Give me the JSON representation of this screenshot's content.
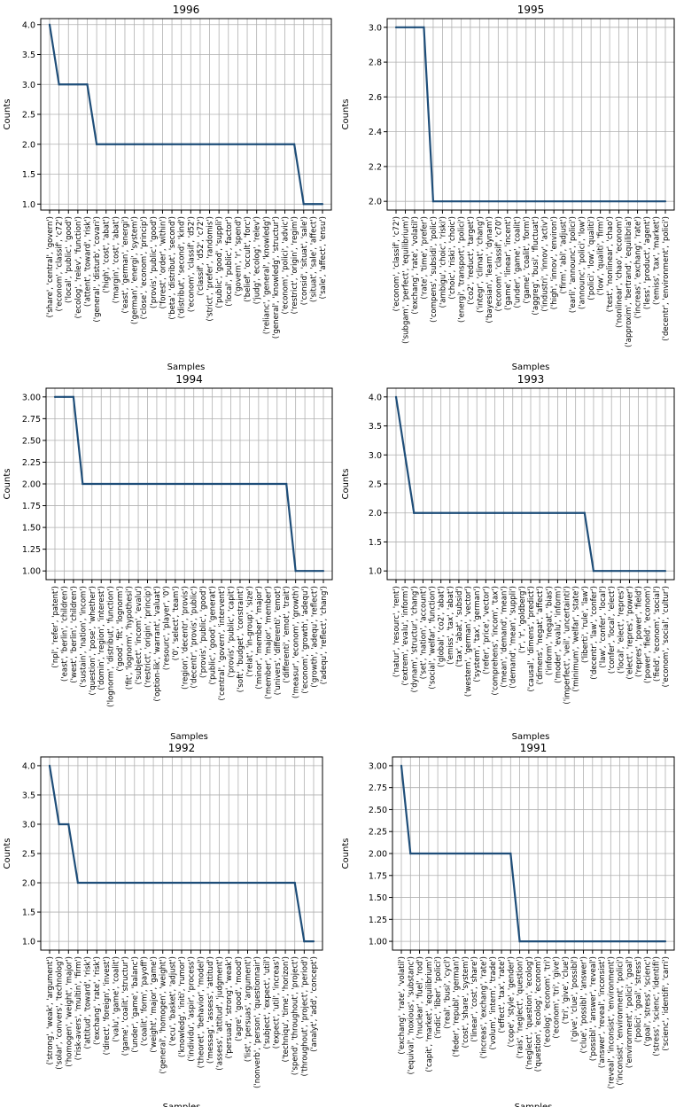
{
  "chart_data": [
    {
      "type": "line",
      "title": "1996",
      "xlabel": "Samples",
      "ylabel": "Counts",
      "ylim": [
        0.9,
        4.1
      ],
      "yticks": [
        1.0,
        1.5,
        2.0,
        2.5,
        3.0,
        3.5,
        4.0
      ],
      "ytick_format": "1",
      "grid": true,
      "color": "#1f4e79",
      "x": [
        "('share', 'central', 'govern')",
        "('econom', 'classif', 'c72')",
        "('local', 'public', 'good')",
        "('ecolog', 'relev', 'function')",
        "('attent', 'toward', 'risk')",
        "('general', 'disturb', 'covari')",
        "('high', 'cost', 'abat')",
        "('margin', 'cost', 'abat')",
        "('east', 'german', 'energi')",
        "('german', 'energi', 'system')",
        "('close', 'econom', 'princip')",
        "('provis', 'public', 'good')",
        "('forest', 'order', 'within')",
        "('beta', 'distribut', 'second')",
        "('distribut', 'second', 'kind')",
        "('econom', 'classif', 'd52')",
        "('classif', 'd52', 'c72')",
        "('strict', 'prefer', 'randomis')",
        "('public', 'good', 'suppli')",
        "('local', 'public', 'factor')",
        "('govern', 'r', 'spend')",
        "('belief', 'occult', 'forc')",
        "('judg', 'ecolog', 'relev')",
        "('relianc', 'general', 'knowledg')",
        "('general', 'knowledg', 'structur')",
        "('econom', 'polici', 'advic')",
        "('restrict', 'origin', 'regim')",
        "('consid', 'situat', 'sale')",
        "('situat', 'sale', 'affect')",
        "('sale', 'affect', 'ensu')"
      ],
      "values": [
        4,
        3,
        3,
        3,
        3,
        2,
        2,
        2,
        2,
        2,
        2,
        2,
        2,
        2,
        2,
        2,
        2,
        2,
        2,
        2,
        2,
        2,
        2,
        2,
        2,
        2,
        2,
        1,
        1,
        1
      ]
    },
    {
      "type": "line",
      "title": "1995",
      "xlabel": "Samples",
      "ylabel": "Counts",
      "ylim": [
        1.95,
        3.05
      ],
      "yticks": [
        2.0,
        2.2,
        2.4,
        2.6,
        2.8,
        3.0
      ],
      "ytick_format": "1",
      "grid": true,
      "color": "#1f4e79",
      "x": [
        "('econom', 'classif', 'c72')",
        "('subgam', 'perfect', 'equilibrium')",
        "('exchang', 'rate', 'volatil')",
        "('rate', 'time', 'prefer')",
        "('compens', 'subsidi', 'polic')",
        "('ambigu', 'choic', 'riski')",
        "('choic', 'riski', 'choic')",
        "('energi', 'transport', 'polici')",
        "('co2', 'reduct', 'target')",
        "('integr', 'climat', 'chang')",
        "('bayesian', 'learn', 'dynam')",
        "('econom', 'classif', 'c70')",
        "('game', 'linear', 'incent')",
        "('under', 'game', 'coalit')",
        "('game', 'coalit', 'form')",
        "('aggreg', 'busi', 'fluctuat')",
        "('industri', 'innov', 'activ')",
        "('high', 'innov', 'environ')",
        "('firm', 'abl', 'adjust')",
        "('earli', 'announc', 'polici')",
        "('announc', 'polici', 'low')",
        "('polici', 'low', 'qualiti')",
        "('low', 'qualiti', 'firm')",
        "('test', 'nonlinear', 'chao')",
        "('nonlinear', 'chao', 'econom')",
        "('approxim', 'bertrand', 'equilibria')",
        "('increas', 'exchang', 'rate')",
        "('less', 'product', 'agent')",
        "('emiss', 'tax', 'market')",
        "('decentr', 'environment', 'polici')"
      ],
      "values": [
        3,
        3,
        3,
        3,
        2,
        2,
        2,
        2,
        2,
        2,
        2,
        2,
        2,
        2,
        2,
        2,
        2,
        2,
        2,
        2,
        2,
        2,
        2,
        2,
        2,
        2,
        2,
        2,
        2,
        2
      ]
    },
    {
      "type": "line",
      "title": "1994",
      "xlabel": "Samples",
      "ylabel": "Counts",
      "ylim": [
        0.9,
        3.1
      ],
      "yticks": [
        1.0,
        1.25,
        1.5,
        1.75,
        2.0,
        2.25,
        2.5,
        2.75,
        3.0
      ],
      "ytick_format": "2",
      "grid": true,
      "color": "#1f4e79",
      "x": [
        "('npl', 'refer', 'patent')",
        "('east', 'berlin', 'children')",
        "('west', 'berlin', 'children')",
        "('sustain', 'nation', 'incom')",
        "('question', 'pose', 'whether')",
        "('domin', 'region', 'interest')",
        "('lognorm', 'distribut', 'function')",
        "('good', 'fit', 'lognorm')",
        "('fit', 'lognorm', 'hypothesi')",
        "('subject', 'incom', 'evalu')",
        "('restrict', 'origin', 'princip')",
        "('option-lik', 'warrant', 'valuat')",
        "('resourc', 'player', '0')",
        "('0', 'select', 'team')",
        "('region', 'decentr', 'provis')",
        "('decentr', 'provis', 'public')",
        "('provis', 'public', 'good')",
        "('public', 'good', 'generat')",
        "('central', 'govern', 'intervent')",
        "('provis', 'public', 'capit')",
        "('soft', 'budget', 'constraint')",
        "('relat', 'in-group', 'size')",
        "('minor', 'member', 'major')",
        "('member', 'major', 'member')",
        "('univers', 'differenti', 'emot')",
        "('differenti', 'emot', 'trait')",
        "('measur', 'econom', 'growth')",
        "('econom', 'growth', 'adequ')",
        "('growth', 'adequ', 'reflect')",
        "('adequ', 'reflect', 'chang')"
      ],
      "values": [
        3,
        3,
        3,
        2,
        2,
        2,
        2,
        2,
        2,
        2,
        2,
        2,
        2,
        2,
        2,
        2,
        2,
        2,
        2,
        2,
        2,
        2,
        2,
        2,
        2,
        2,
        1,
        1,
        1,
        1
      ]
    },
    {
      "type": "line",
      "title": "1993",
      "xlabel": "Samples",
      "ylabel": "Counts",
      "ylim": [
        0.85,
        4.15
      ],
      "yticks": [
        1.0,
        1.5,
        2.0,
        2.5,
        3.0,
        3.5,
        4.0
      ],
      "ytick_format": "1",
      "grid": true,
      "color": "#1f4e79",
      "x": [
        "('natur', 'resourc', 'rent')",
        "('extrem', 'evalu', 'inform')",
        "('dynam', 'structur', 'chang')",
        "('set', 'nation', 'account')",
        "('social', 'welfar', 'function')",
        "('global', 'co2', 'abat')",
        "('emiss', 'tax', 'abat')",
        "('tax', 'abat', 'subsid')",
        "('western', 'german', 'vector')",
        "('system', 'tax', 'german')",
        "('refer', 'price', 'vector')",
        "('comprehens', 'incom', 'tax')",
        "('mean', 'demand', 'mean')",
        "('demand', 'mean', 'suppli')",
        "('r', 'r', 'goldberg')",
        "('causal', 'dimens', 'predict')",
        "('dimens', 'negat', 'affect')",
        "('inform', 'negat', 'bias')",
        "('moder', 'evalu', 'inform')",
        "('imperfect', 'veil', 'uncertainti')",
        "('minimum', 'welfar', 'state')",
        "('liberti', 'rule', 'law')",
        "('decentr', 'law', 'confer')",
        "('law', 'confer', 'local')",
        "('confer', 'local', 'elect')",
        "('local', 'elect', 'repres')",
        "('elect', 'repres', 'power')",
        "('repres', 'power', 'field')",
        "('power', 'field', 'econom')",
        "('field', 'econom', 'social')",
        "('econom', 'social', 'cultur')"
      ],
      "values": [
        4,
        3,
        2,
        2,
        2,
        2,
        2,
        2,
        2,
        2,
        2,
        2,
        2,
        2,
        2,
        2,
        2,
        2,
        2,
        2,
        2,
        2,
        1,
        1,
        1,
        1,
        1,
        1,
        1,
        1,
        1
      ]
    },
    {
      "type": "line",
      "title": "1992",
      "xlabel": "Samples",
      "ylabel": "Counts",
      "ylim": [
        0.85,
        4.15
      ],
      "yticks": [
        1.0,
        1.5,
        2.0,
        2.5,
        3.0,
        3.5,
        4.0
      ],
      "ytick_format": "1",
      "grid": true,
      "color": "#1f4e79",
      "x": [
        "('strong', 'weak', 'argument')",
        "('solar', 'convers', 'technolog')",
        "('homogen', 'weight', 'major')",
        "('risk-avers', 'multin', 'firm')",
        "('attitud', 'toward', 'risk')",
        "('exchang', 'rate', 'risk')",
        "('direct', 'foreign', 'invest')",
        "('valu', 'game', 'coalit')",
        "('game', 'coalit', 'structur')",
        "('under', 'game', 'balanc')",
        "('coalit', 'form', 'payoff')",
        "('weight', 'major', 'game')",
        "('general', 'homogen', 'weight')",
        "('ecu', 'basket', 'adjust')",
        "('knowledg', 'initi', 'rumor')",
        "('individu', 'aspir', 'process')",
        "('theoret', 'behavior', 'model')",
        "('messag', 'assess', 'attitud')",
        "('assess', 'attitud', 'judgment')",
        "('persuad', 'strong', 'weak')",
        "('agre', 'good', 'mood')",
        "('list', 'persuas', 'argument')",
        "('nonverb', 'person', 'questionnair')",
        "('subject', 'expect', 'util')",
        "('expect', 'util', 'increas')",
        "('techniqu', 'time', 'horizon')",
        "('spend', 'throughout', 'project')",
        "('throughout', 'project', 'period')",
        "('analyt', 'add', 'concept')"
      ],
      "values": [
        4,
        3,
        3,
        2,
        2,
        2,
        2,
        2,
        2,
        2,
        2,
        2,
        2,
        2,
        2,
        2,
        2,
        2,
        2,
        2,
        2,
        2,
        2,
        2,
        2,
        2,
        2,
        1,
        1
      ]
    },
    {
      "type": "line",
      "title": "1991",
      "xlabel": "Samples",
      "ylabel": "Counts",
      "ylim": [
        0.9,
        3.1
      ],
      "yticks": [
        1.0,
        1.25,
        1.5,
        1.75,
        2.0,
        2.25,
        2.5,
        2.75,
        3.0
      ],
      "ytick_format": "2",
      "grid": true,
      "color": "#1f4e79",
      "x": [
        "('exchang', 'rate', 'volatil')",
        "('equival', 'noxious', 'substanc')",
        "('nuclear', 'fuel', 'rod')",
        "('capit', 'market', 'equilibrium')",
        "('indic', 'liber', 'polici')",
        "('real', 'busi', 'cycl')",
        "('feder', 'republ', 'german')",
        "('cost', 'share', 'system')",
        "('linear', 'cost', 'share')",
        "('increas', 'exchang', 'rate')",
        "('volum', 'intern', 'trade')",
        "('effect', 'tax', 'rate')",
        "('cope', 'style', 'gender')",
        "('rais', 'neglect', 'question')",
        "('neglect', 'question', 'ecolog')",
        "('question', 'ecolog', 'econom')",
        "('ecolog', 'econom', 'tri')",
        "('econom', 'tri', 'give')",
        "('tri', 'give', 'clue')",
        "('give', 'clue', 'possibl')",
        "('clue', 'possibl', 'answer')",
        "('possibl', 'answer', 'reveal')",
        "('answer', 'reveal', 'inconsist')",
        "('reveal', 'inconsist', 'environment')",
        "('inconsist', 'environment', 'polici')",
        "('environment', 'polici', 'goal')",
        "('polici', 'goal', 'stress')",
        "('goal', 'stress', 'scienc')",
        "('stress', 'scienc', 'identifi')",
        "('scienc', 'identifi', 'carri')"
      ],
      "values": [
        3,
        2,
        2,
        2,
        2,
        2,
        2,
        2,
        2,
        2,
        2,
        2,
        2,
        1,
        1,
        1,
        1,
        1,
        1,
        1,
        1,
        1,
        1,
        1,
        1,
        1,
        1,
        1,
        1,
        1
      ]
    }
  ]
}
